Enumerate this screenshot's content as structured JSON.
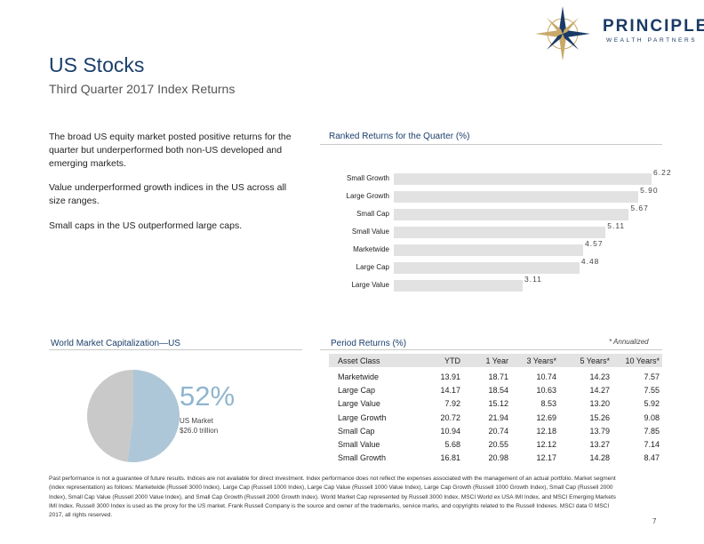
{
  "brand": {
    "name": "PRINCIPLE",
    "tagline": "WEALTH PARTNERS"
  },
  "header": {
    "title": "US Stocks",
    "subtitle": "Third Quarter 2017 Index Returns"
  },
  "bullets": [
    "The broad US equity market posted positive returns for the quarter but underperformed both non-US developed and emerging markets.",
    "Value underperformed growth indices in the US across all size ranges.",
    "Small caps in the US outperformed large caps."
  ],
  "ranked": {
    "title": "Ranked Returns for the Quarter (%)",
    "labels": [
      "Small Growth",
      "Large Growth",
      "Small Cap",
      "Small Value",
      "Marketwide",
      "Large Cap",
      "Large Value"
    ],
    "values": [
      6.22,
      5.9,
      5.67,
      5.11,
      4.57,
      4.48,
      3.11
    ],
    "value_labels": [
      "6.22",
      "5.90",
      "5.67",
      "5.11",
      "4.57",
      "4.48",
      "3.11"
    ]
  },
  "world": {
    "title": "World Market Capitalization—US",
    "share_pct": 52,
    "percent_label": "52%",
    "caption_line1": "US Market",
    "caption_line2": "$26.0 trillion",
    "colors": {
      "us": "#adc7d8",
      "rest": "#c9c9c9"
    }
  },
  "period": {
    "title": "Period Returns (%)",
    "annotation": "* Annualized",
    "columns": [
      "Asset Class",
      "YTD",
      "1 Year",
      "3 Years*",
      "5 Years*",
      "10 Years*"
    ],
    "rows": [
      [
        "Marketwide",
        "13.91",
        "18.71",
        "10.74",
        "14.23",
        "7.57"
      ],
      [
        "Large Cap",
        "14.17",
        "18.54",
        "10.63",
        "14.27",
        "7.55"
      ],
      [
        "Large Value",
        "7.92",
        "15.12",
        "8.53",
        "13.20",
        "5.92"
      ],
      [
        "Large Growth",
        "20.72",
        "21.94",
        "12.69",
        "15.26",
        "9.08"
      ],
      [
        "Small Cap",
        "10.94",
        "20.74",
        "12.18",
        "13.79",
        "7.85"
      ],
      [
        "Small Value",
        "5.68",
        "20.55",
        "12.12",
        "13.27",
        "7.14"
      ],
      [
        "Small Growth",
        "16.81",
        "20.98",
        "12.17",
        "14.28",
        "8.47"
      ]
    ]
  },
  "footer": {
    "disclaimer": "Past performance is not a guarantee of future results. Indices are not available for direct investment. Index performance does not reflect the expenses associated with the management of an actual portfolio. Market segment (index representation) as follows: Marketwide (Russell 3000 Index), Large Cap (Russell 1000 Index), Large Cap Value (Russell 1000 Value Index), Large Cap Growth (Russell 1000 Growth Index), Small Cap (Russell 2000 Index), Small Cap Value (Russell 2000 Value Index), and Small Cap Growth (Russell 2000 Growth Index). World Market Cap represented by Russell 3000 Index, MSCI World ex USA IMI Index, and MSCI Emerging Markets IMI Index. Russell 3000 Index is used as the proxy for the US market. Frank Russell Company is the source and owner of the trademarks, service marks, and copyrights related to the Russell Indexes. MSCI data © MSCI 2017, all rights reserved.",
    "page": "7"
  }
}
